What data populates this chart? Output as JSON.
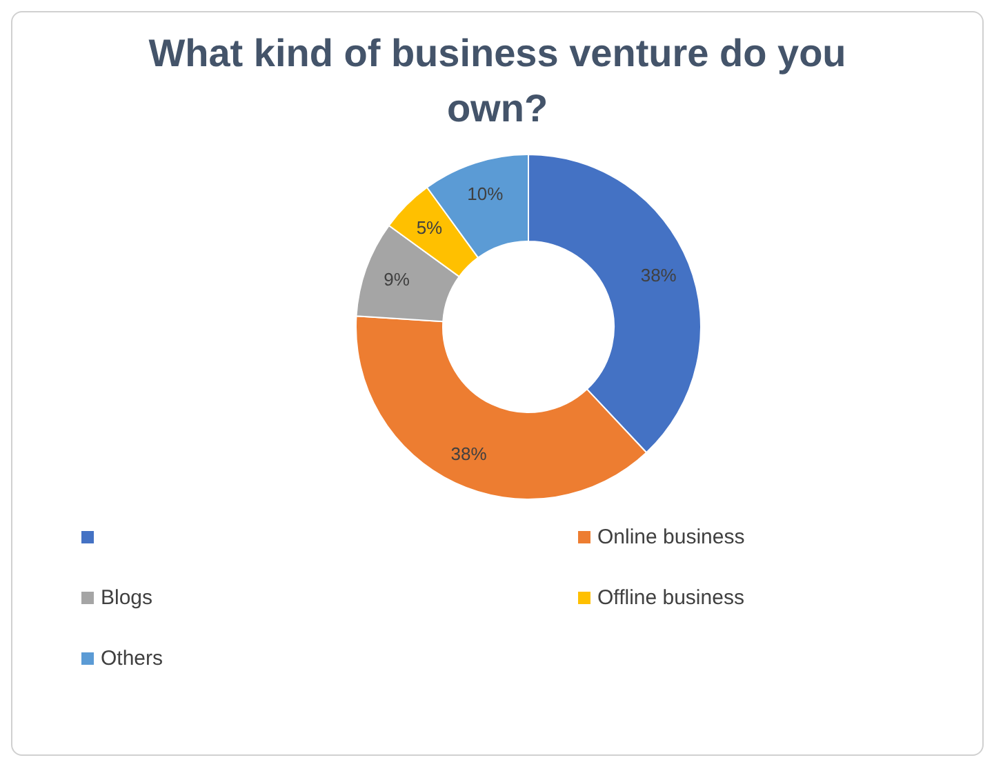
{
  "chart_data": {
    "type": "donut",
    "title": "What kind of business venture do you own?",
    "categories": [
      null,
      "Online business",
      "Blogs",
      "Offline business",
      "Others"
    ],
    "values": [
      38,
      38,
      9,
      5,
      10
    ],
    "colors": [
      "#4472c4",
      "#ed7d31",
      "#a5a5a5",
      "#ffc000",
      "#5b9bd5"
    ],
    "value_labels": [
      "38%",
      "38%",
      "9%",
      "5%",
      "10%"
    ],
    "legend": "bottom"
  }
}
